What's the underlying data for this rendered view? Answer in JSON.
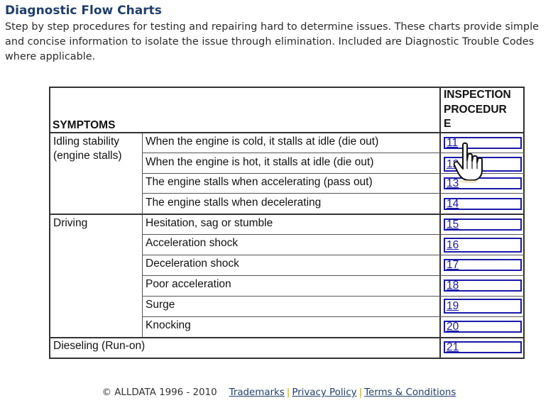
{
  "page": {
    "title": "Diagnostic Flow Charts",
    "description": "Step by step procedures for testing and repairing hard to determine issues. These charts provide simple and concise information to isolate the issue through elimination. Included are Diagnostic Trouble Codes where applicable."
  },
  "table": {
    "header_symptoms": "SYMPTOMS",
    "header_procedure_lines": [
      "INSPECTION",
      "PROCEDUR",
      "E"
    ],
    "groups": [
      {
        "name_lines": [
          "Idling stability",
          "(engine stalls)"
        ]
      },
      {
        "name_lines": [
          "Driving"
        ]
      },
      {
        "name_lines": [
          "Dieseling (Run-on)"
        ]
      }
    ],
    "rows": [
      {
        "symptom": "When the engine is cold, it stalls at idle (die out)",
        "procedure": "11"
      },
      {
        "symptom": "When the engine is hot, it stalls at idle (die out)",
        "procedure": "12"
      },
      {
        "symptom": "The engine stalls when accelerating (pass out)",
        "procedure": "13"
      },
      {
        "symptom": "The engine stalls when decelerating",
        "procedure": "14"
      },
      {
        "symptom": "Hesitation, sag or stumble",
        "procedure": "15"
      },
      {
        "symptom": "Acceleration shock",
        "procedure": "16"
      },
      {
        "symptom": "Deceleration shock",
        "procedure": "17"
      },
      {
        "symptom": "Poor acceleration",
        "procedure": "18"
      },
      {
        "symptom": "Surge",
        "procedure": "19"
      },
      {
        "symptom": "Knocking",
        "procedure": "20"
      },
      {
        "symptom": "",
        "procedure": "21"
      }
    ]
  },
  "footer": {
    "copyright": "© ALLDATA 1996 - 2010",
    "links": [
      "Trademarks",
      "Privacy Policy",
      "Terms & Conditions"
    ],
    "separator": "|"
  },
  "colors": {
    "title": "#1f3f6b",
    "link_box": "#1a1aa8",
    "separator": "#c8a800"
  },
  "icons": {
    "cursor": "hand-pointer-icon"
  }
}
